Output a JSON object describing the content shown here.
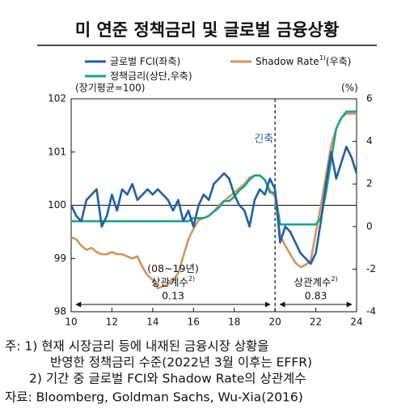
{
  "chart_data": {
    "type": "line",
    "title": "미 연준 정책금리 및 글로벌 금융상황",
    "ylabel": "(장기평균=100)",
    "y2label": "(%)",
    "x": [
      10,
      10.25,
      10.5,
      10.75,
      11,
      11.25,
      11.5,
      11.75,
      12,
      12.25,
      12.5,
      12.75,
      13,
      13.25,
      13.5,
      13.75,
      14,
      14.25,
      14.5,
      14.75,
      15,
      15.25,
      15.5,
      15.75,
      16,
      16.25,
      16.5,
      16.75,
      17,
      17.25,
      17.5,
      17.75,
      18,
      18.25,
      18.5,
      18.75,
      19,
      19.25,
      19.5,
      19.75,
      20,
      20.25,
      20.5,
      20.75,
      21,
      21.25,
      21.5,
      21.75,
      22,
      22.25,
      22.5,
      22.75,
      23,
      23.25,
      23.5,
      23.75,
      24
    ],
    "series": [
      {
        "name": "글로벌 FCI(좌축)",
        "color": "#1f5fa8",
        "axis": "y",
        "values": [
          100.0,
          99.8,
          99.7,
          100.1,
          100.2,
          100.3,
          99.6,
          99.8,
          100.2,
          99.9,
          100.3,
          100.2,
          100.4,
          100.1,
          100.2,
          100.3,
          100.2,
          100.3,
          100.2,
          100.1,
          99.9,
          100.1,
          99.7,
          99.9,
          99.6,
          100.0,
          100.2,
          100.1,
          100.4,
          100.5,
          100.6,
          100.5,
          100.2,
          100.0,
          99.9,
          99.6,
          100.1,
          100.3,
          100.2,
          100.5,
          100.3,
          99.3,
          99.6,
          99.5,
          99.3,
          99.1,
          99.0,
          98.9,
          99.1,
          99.7,
          100.4,
          101.0,
          100.5,
          100.8,
          101.1,
          100.9,
          100.6
        ]
      },
      {
        "name": "Shadow Rate",
        "name_note": "1)",
        "name_suffix": "(우축)",
        "color": "#d4955a",
        "axis": "y2",
        "values": [
          -0.5,
          -0.6,
          -0.9,
          -1.1,
          -1.0,
          -1.2,
          -1.3,
          -1.3,
          -1.2,
          -1.3,
          -1.3,
          -1.4,
          -1.5,
          -1.4,
          -1.9,
          -2.3,
          -2.5,
          -2.9,
          -2.8,
          -2.7,
          -2.5,
          -2.2,
          -1.4,
          -0.6,
          -0.1,
          0.3,
          0.4,
          0.5,
          0.7,
          1.0,
          1.2,
          1.4,
          1.6,
          1.8,
          2.0,
          2.3,
          2.4,
          2.4,
          2.2,
          1.7,
          1.4,
          -0.4,
          -0.9,
          -1.3,
          -1.7,
          -1.9,
          -1.8,
          -1.6,
          -0.3,
          1.0,
          2.4,
          3.8,
          4.6,
          5.1,
          5.3,
          5.3,
          5.3
        ]
      },
      {
        "name": "정책금리(상단,우축)",
        "color": "#1aa58a",
        "axis": "y2",
        "values": [
          0.25,
          0.25,
          0.25,
          0.25,
          0.25,
          0.25,
          0.25,
          0.25,
          0.25,
          0.25,
          0.25,
          0.25,
          0.25,
          0.25,
          0.25,
          0.25,
          0.25,
          0.25,
          0.25,
          0.25,
          0.25,
          0.25,
          0.25,
          0.25,
          0.4,
          0.4,
          0.4,
          0.5,
          0.7,
          0.9,
          1.2,
          1.2,
          1.4,
          1.7,
          1.9,
          2.2,
          2.4,
          2.4,
          2.2,
          1.6,
          1.6,
          0.1,
          0.1,
          0.1,
          0.1,
          0.1,
          0.1,
          0.1,
          0.1,
          0.4,
          1.6,
          3.1,
          4.6,
          5.1,
          5.4,
          5.4,
          5.4
        ]
      }
    ],
    "xlim": [
      10,
      24
    ],
    "xticks": [
      10,
      12,
      14,
      16,
      18,
      20,
      22,
      24
    ],
    "ylim": [
      98,
      102
    ],
    "yticks": [
      98,
      99,
      100,
      101,
      102
    ],
    "y2lim": [
      -4,
      6
    ],
    "y2ticks": [
      -4,
      -2,
      0,
      2,
      4,
      6
    ],
    "reference_line": 100,
    "event_line": {
      "x": 20,
      "label": "긴축"
    },
    "periods": [
      {
        "from": 10,
        "to": 20,
        "lines": [
          "(08~19년)",
          "상관계수"
        ],
        "note": "2)",
        "value": 0.13
      },
      {
        "from": 20,
        "to": 24,
        "lines": [
          "상관계수"
        ],
        "note": "2)",
        "value": 0.83
      }
    ]
  },
  "notes": [
    "주: 1) 현재 시장금리 등에 내재된 금융시장 상황을",
    "반영한 정책금리 수준(2022년 3월 이후는 EFFR)",
    "2) 기간 중 글로벌 FCI와 Shadow Rate의 상관계수",
    "자료: Bloomberg, Goldman Sachs, Wu-Xia(2016)"
  ]
}
